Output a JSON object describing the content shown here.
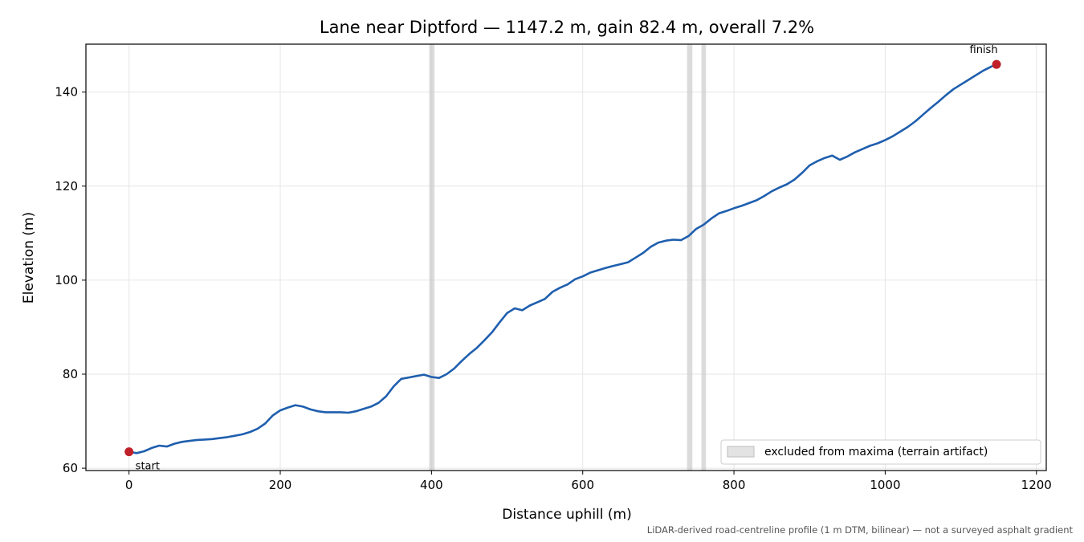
{
  "chart_data": {
    "type": "line",
    "title": "Lane near Diptford — 1147.2 m, gain 82.4 m, overall 7.2%",
    "xlabel": "Distance uphill (m)",
    "ylabel": "Elevation (m)",
    "xlim": [
      -57,
      1213
    ],
    "ylim": [
      59.5,
      150.2
    ],
    "xticks": [
      0,
      200,
      400,
      600,
      800,
      1000,
      1200
    ],
    "yticks": [
      60,
      80,
      100,
      120,
      140
    ],
    "grid": true,
    "line_color": "#1f5fae",
    "marker_color": "#c0202a",
    "profile": {
      "x": [
        0,
        10,
        20,
        30,
        40,
        50,
        60,
        70,
        80,
        90,
        100,
        110,
        120,
        130,
        140,
        150,
        160,
        170,
        180,
        190,
        200,
        210,
        220,
        230,
        240,
        250,
        260,
        270,
        280,
        290,
        300,
        310,
        320,
        330,
        340,
        350,
        360,
        370,
        380,
        390,
        400,
        410,
        420,
        430,
        440,
        450,
        460,
        470,
        480,
        490,
        500,
        510,
        520,
        530,
        540,
        550,
        560,
        570,
        580,
        590,
        600,
        610,
        620,
        630,
        640,
        650,
        660,
        670,
        680,
        690,
        700,
        710,
        720,
        730,
        740,
        750,
        760,
        770,
        780,
        790,
        800,
        810,
        820,
        830,
        840,
        850,
        860,
        870,
        880,
        890,
        900,
        910,
        920,
        930,
        940,
        950,
        960,
        970,
        980,
        990,
        1000,
        1010,
        1020,
        1030,
        1040,
        1050,
        1060,
        1070,
        1080,
        1090,
        1100,
        1110,
        1120,
        1130,
        1140,
        1147.2
      ],
      "y": [
        63.5,
        63.2,
        63.6,
        64.3,
        64.8,
        64.6,
        65.2,
        65.6,
        65.8,
        66.0,
        66.1,
        66.2,
        66.4,
        66.6,
        66.9,
        67.2,
        67.7,
        68.4,
        69.5,
        71.2,
        72.3,
        72.9,
        73.4,
        73.1,
        72.5,
        72.1,
        71.9,
        71.9,
        71.9,
        71.8,
        72.1,
        72.6,
        73.1,
        73.9,
        75.3,
        77.4,
        79.0,
        79.3,
        79.6,
        79.9,
        79.4,
        79.2,
        80.0,
        81.2,
        82.8,
        84.3,
        85.6,
        87.2,
        88.9,
        91.0,
        93.0,
        94.0,
        93.6,
        94.6,
        95.3,
        96.0,
        97.5,
        98.4,
        99.1,
        100.2,
        100.8,
        101.6,
        102.1,
        102.6,
        103.0,
        103.4,
        103.8,
        104.8,
        105.8,
        107.1,
        108.0,
        108.4,
        108.6,
        108.5,
        109.4,
        110.9,
        111.8,
        113.1,
        114.2,
        114.7,
        115.3,
        115.8,
        116.4,
        117.0,
        117.9,
        118.9,
        119.7,
        120.4,
        121.4,
        122.8,
        124.4,
        125.3,
        126.0,
        126.5,
        125.6,
        126.3,
        127.2,
        127.9,
        128.6,
        129.1,
        129.8,
        130.6,
        131.6,
        132.6,
        133.8,
        135.2,
        136.6,
        137.9,
        139.3,
        140.6,
        141.6,
        142.6,
        143.6,
        144.6,
        145.4,
        145.9
      ]
    },
    "excluded_bands": [
      [
        397,
        404
      ],
      [
        738,
        745
      ],
      [
        757,
        763
      ]
    ],
    "legend": {
      "label": "excluded from maxima (terrain artifact)",
      "placement": "lower right"
    },
    "annotations": [
      {
        "text": "start",
        "x": 0,
        "y": 63.5
      },
      {
        "text": "finish",
        "x": 1147.2,
        "y": 145.9
      }
    ],
    "footnote": "LiDAR-derived road-centreline profile (1 m DTM, bilinear) — not a surveyed asphalt gradient"
  }
}
